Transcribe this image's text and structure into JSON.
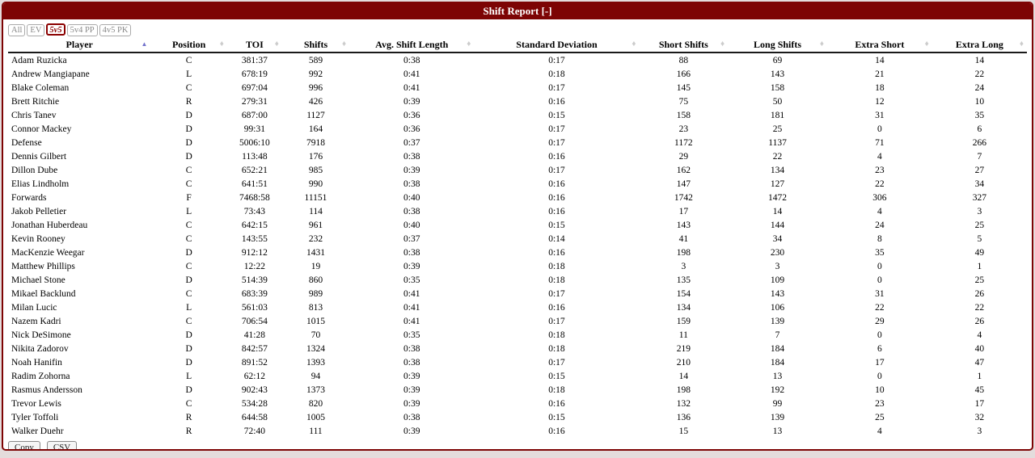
{
  "title": "Shift Report [-]",
  "colors": {
    "header_bg": "#7d0404",
    "header_text": "#ffffff",
    "active_filter": "#8b0000",
    "sort_active_arrow": "#7272cc",
    "sort_idle": "#cccccc"
  },
  "icons": {
    "sort_asc": "▲",
    "sort_both": "♦"
  },
  "filters": [
    {
      "label": "All",
      "active": false
    },
    {
      "label": "EV",
      "active": false
    },
    {
      "label": "5v5",
      "active": true
    },
    {
      "label": "5v4 PP",
      "active": false
    },
    {
      "label": "4v5 PK",
      "active": false
    }
  ],
  "table": {
    "columns": [
      {
        "key": "player",
        "label": "Player",
        "width": "14.0%",
        "sort": "asc"
      },
      {
        "key": "position",
        "label": "Position",
        "width": "7.5%",
        "sort": "none"
      },
      {
        "key": "toi",
        "label": "TOI",
        "width": "5.4%",
        "sort": "none"
      },
      {
        "key": "shifts",
        "label": "Shifts",
        "width": "6.6%",
        "sort": "none"
      },
      {
        "key": "avg-shift-length",
        "label": "Avg. Shift Length",
        "width": "12.25%",
        "sort": "none"
      },
      {
        "key": "standard-deviation",
        "label": "Standard Deviation",
        "width": "16.2%",
        "sort": "none"
      },
      {
        "key": "short-shifts",
        "label": "Short Shifts",
        "width": "8.7%",
        "sort": "none"
      },
      {
        "key": "long-shifts",
        "label": "Long Shifts",
        "width": "9.75%",
        "sort": "none"
      },
      {
        "key": "extra-short",
        "label": "Extra Short",
        "width": "10.3%",
        "sort": "none"
      },
      {
        "key": "extra-long",
        "label": "Extra Long",
        "width": "9.3%",
        "sort": "none"
      }
    ],
    "rows": [
      [
        "Adam Ruzicka",
        "C",
        "381:37",
        "589",
        "0:38",
        "0:17",
        "88",
        "69",
        "14",
        "14"
      ],
      [
        "Andrew Mangiapane",
        "L",
        "678:19",
        "992",
        "0:41",
        "0:18",
        "166",
        "143",
        "21",
        "22"
      ],
      [
        "Blake Coleman",
        "C",
        "697:04",
        "996",
        "0:41",
        "0:17",
        "145",
        "158",
        "18",
        "24"
      ],
      [
        "Brett Ritchie",
        "R",
        "279:31",
        "426",
        "0:39",
        "0:16",
        "75",
        "50",
        "12",
        "10"
      ],
      [
        "Chris Tanev",
        "D",
        "687:00",
        "1127",
        "0:36",
        "0:15",
        "158",
        "181",
        "31",
        "35"
      ],
      [
        "Connor Mackey",
        "D",
        "99:31",
        "164",
        "0:36",
        "0:17",
        "23",
        "25",
        "0",
        "6"
      ],
      [
        "Defense",
        "D",
        "5006:10",
        "7918",
        "0:37",
        "0:17",
        "1172",
        "1137",
        "71",
        "266"
      ],
      [
        "Dennis Gilbert",
        "D",
        "113:48",
        "176",
        "0:38",
        "0:16",
        "29",
        "22",
        "4",
        "7"
      ],
      [
        "Dillon Dube",
        "C",
        "652:21",
        "985",
        "0:39",
        "0:17",
        "162",
        "134",
        "23",
        "27"
      ],
      [
        "Elias Lindholm",
        "C",
        "641:51",
        "990",
        "0:38",
        "0:16",
        "147",
        "127",
        "22",
        "34"
      ],
      [
        "Forwards",
        "F",
        "7468:58",
        "11151",
        "0:40",
        "0:16",
        "1742",
        "1472",
        "306",
        "327"
      ],
      [
        "Jakob Pelletier",
        "L",
        "73:43",
        "114",
        "0:38",
        "0:16",
        "17",
        "14",
        "4",
        "3"
      ],
      [
        "Jonathan Huberdeau",
        "C",
        "642:15",
        "961",
        "0:40",
        "0:15",
        "143",
        "144",
        "24",
        "25"
      ],
      [
        "Kevin Rooney",
        "C",
        "143:55",
        "232",
        "0:37",
        "0:14",
        "41",
        "34",
        "8",
        "5"
      ],
      [
        "MacKenzie Weegar",
        "D",
        "912:12",
        "1431",
        "0:38",
        "0:16",
        "198",
        "230",
        "35",
        "49"
      ],
      [
        "Matthew Phillips",
        "C",
        "12:22",
        "19",
        "0:39",
        "0:18",
        "3",
        "3",
        "0",
        "1"
      ],
      [
        "Michael Stone",
        "D",
        "514:39",
        "860",
        "0:35",
        "0:18",
        "135",
        "109",
        "0",
        "25"
      ],
      [
        "Mikael Backlund",
        "C",
        "683:39",
        "989",
        "0:41",
        "0:17",
        "154",
        "143",
        "31",
        "26"
      ],
      [
        "Milan Lucic",
        "L",
        "561:03",
        "813",
        "0:41",
        "0:16",
        "134",
        "106",
        "22",
        "22"
      ],
      [
        "Nazem Kadri",
        "C",
        "706:54",
        "1015",
        "0:41",
        "0:17",
        "159",
        "139",
        "29",
        "26"
      ],
      [
        "Nick DeSimone",
        "D",
        "41:28",
        "70",
        "0:35",
        "0:18",
        "11",
        "7",
        "0",
        "4"
      ],
      [
        "Nikita Zadorov",
        "D",
        "842:57",
        "1324",
        "0:38",
        "0:18",
        "219",
        "184",
        "6",
        "40"
      ],
      [
        "Noah Hanifin",
        "D",
        "891:52",
        "1393",
        "0:38",
        "0:17",
        "210",
        "184",
        "17",
        "47"
      ],
      [
        "Radim Zohorna",
        "L",
        "62:12",
        "94",
        "0:39",
        "0:15",
        "14",
        "13",
        "0",
        "1"
      ],
      [
        "Rasmus Andersson",
        "D",
        "902:43",
        "1373",
        "0:39",
        "0:18",
        "198",
        "192",
        "10",
        "45"
      ],
      [
        "Trevor Lewis",
        "C",
        "534:28",
        "820",
        "0:39",
        "0:16",
        "132",
        "99",
        "23",
        "17"
      ],
      [
        "Tyler Toffoli",
        "R",
        "644:58",
        "1005",
        "0:38",
        "0:15",
        "136",
        "139",
        "25",
        "32"
      ],
      [
        "Walker Duehr",
        "R",
        "72:40",
        "111",
        "0:39",
        "0:16",
        "15",
        "13",
        "4",
        "3"
      ]
    ]
  },
  "footer": {
    "copy_label": "Copy",
    "csv_label": "CSV"
  }
}
